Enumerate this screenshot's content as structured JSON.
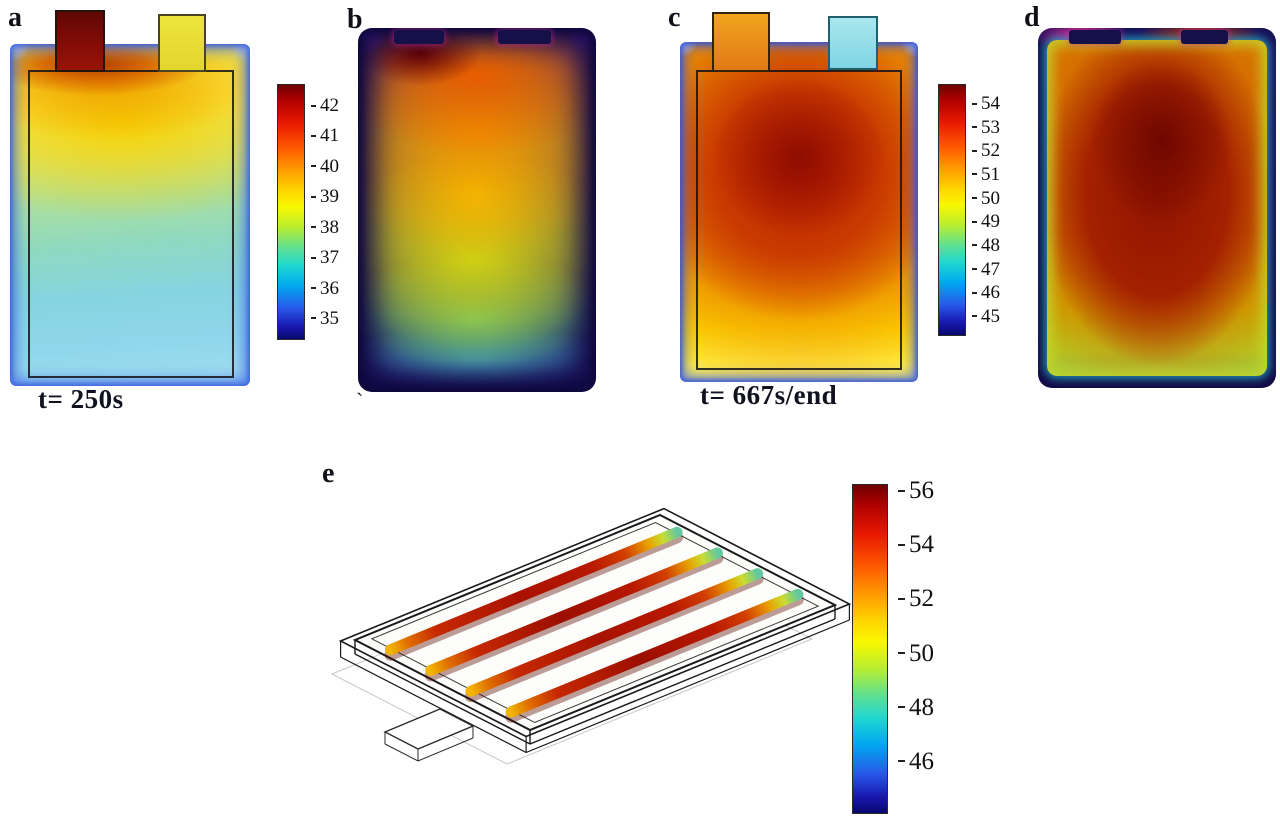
{
  "panels": {
    "a": {
      "label": "a",
      "caption": "t= 250s"
    },
    "b": {
      "label": "b",
      "stray_mark": "`"
    },
    "c": {
      "label": "c",
      "caption": "t= 667s/end"
    },
    "d": {
      "label": "d"
    },
    "e": {
      "label": "e"
    }
  },
  "colorbars": {
    "a": {
      "ticks": [
        "42",
        "41",
        "40",
        "39",
        "38",
        "37",
        "36",
        "35"
      ]
    },
    "c": {
      "ticks": [
        "54",
        "53",
        "52",
        "51",
        "50",
        "49",
        "48",
        "47",
        "46",
        "45"
      ]
    },
    "e": {
      "ticks": [
        "56",
        "54",
        "52",
        "50",
        "48",
        "46"
      ]
    }
  },
  "colors": {
    "jet_scale": [
      "#6d0000",
      "#e81800",
      "#ff5a00",
      "#ffd800",
      "#b8ee30",
      "#20d8d0",
      "#00a8f0",
      "#2858e8",
      "#08086e"
    ],
    "hot_core": "#8f0d00",
    "cool_edge": "#2858e8"
  },
  "chart_data": [
    {
      "type": "heatmap",
      "panel": "a",
      "kind": "simulation",
      "time_label": "t= 250s",
      "colorbar": {
        "min": 35,
        "max": 42,
        "ticks": [
          42,
          41,
          40,
          39,
          38,
          37,
          36,
          35
        ]
      },
      "summary": "Pouch cell surface temperature at t=250s: hotspot ~41-42 under the left (dark red) tab, ~39-40 upper middle, cooling to ~35-36 at the bottom; thin blue border at edges."
    },
    {
      "type": "heatmap",
      "panel": "b",
      "kind": "infrared-photo",
      "time_label": "t= 250s",
      "summary": "Experimental IR image at the same time: orange-red upper region, yellow middle, green lower third, blue-green bottom, dark blue/purple frame."
    },
    {
      "type": "heatmap",
      "panel": "c",
      "kind": "simulation",
      "time_label": "t= 667s/end",
      "colorbar": {
        "min": 45,
        "max": 54,
        "ticks": [
          54,
          53,
          52,
          51,
          50,
          49,
          48,
          47,
          46,
          45
        ]
      },
      "summary": "Pouch cell at end of discharge (t=667s): dark red core ~53-54 in upper-center, orange surround ~52, yellow band ~50-51 at bottom, thin blue edge."
    },
    {
      "type": "heatmap",
      "panel": "d",
      "kind": "infrared-photo",
      "time_label": "t= 667s/end",
      "summary": "Experimental IR image at end: large dark red core ~53-55, orange ring, yellow-green rim, thin cyan line, dark navy border."
    },
    {
      "type": "heatmap",
      "panel": "e",
      "kind": "3d-simulation",
      "colorbar": {
        "min": 45,
        "max": 56,
        "ticks": [
          56,
          54,
          52,
          50,
          48,
          46
        ]
      },
      "summary": "Isometric 3D view of the cell stack: four lengthwise hot ribbons ~55-56 (dark red) fading to orange ~53 near left ends and yellow-green ~50-51 at the right tips; wireframe casing."
    }
  ]
}
